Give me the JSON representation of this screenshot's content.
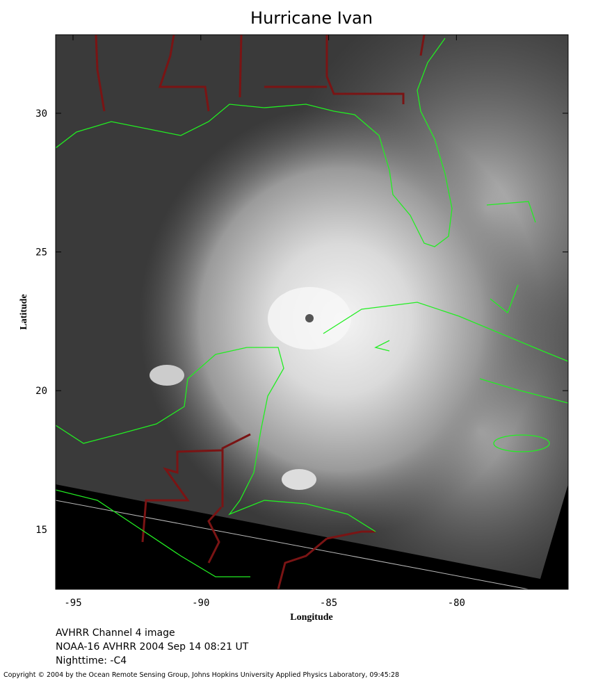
{
  "chart_data": {
    "type": "map",
    "title": "Hurricane Ivan",
    "x_label": "Longitude",
    "y_label": "Latitude",
    "xlim": [
      -95.68,
      -75.63
    ],
    "ylim": [
      12.84,
      32.83
    ],
    "xticks": [
      -95,
      -90,
      -85,
      -80
    ],
    "yticks": [
      15,
      20,
      25,
      30
    ],
    "caption": [
      "AVHRR Channel 4 image",
      "NOAA-16 AVHRR 2004 Sep 14 08:21 UT",
      "Nighttime: -C4"
    ],
    "copyright": "Copyright © 2004 by the Ocean Remote Sensing Group, Johns Hopkins University Applied Physics Laboratory, 09:45:28"
  }
}
